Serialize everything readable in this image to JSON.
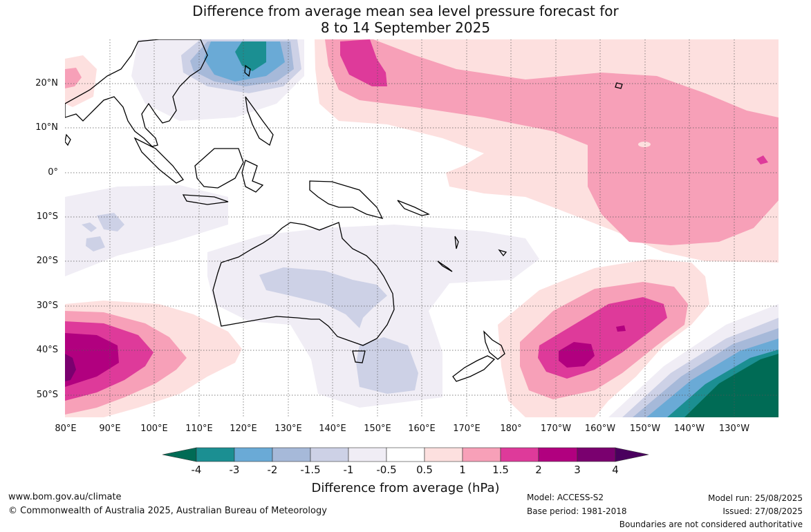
{
  "title": {
    "line1": "Difference from average mean sea level pressure forecast for",
    "line2": "8 to 14 September 2025"
  },
  "map": {
    "lat_labels": [
      "20°N",
      "10°N",
      "0°",
      "10°S",
      "20°S",
      "30°S",
      "40°S",
      "50°S"
    ],
    "lon_labels": [
      "80°E",
      "90°E",
      "100°E",
      "110°E",
      "120°E",
      "130°E",
      "140°E",
      "150°E",
      "160°E",
      "170°E",
      "180°",
      "170°W",
      "160°W",
      "150°W",
      "140°W",
      "130°W"
    ]
  },
  "colorbar": {
    "title": "Difference from average (hPa)",
    "tick_labels": [
      "-4",
      "-3",
      "-2",
      "-1.5",
      "-1",
      "-0.5",
      "0.5",
      "1",
      "1.5",
      "2",
      "3",
      "4"
    ],
    "colors": [
      "#006b55",
      "#1b8f92",
      "#6aaad6",
      "#a6b9d9",
      "#cdd1e6",
      "#f0edf5",
      "#ffffff",
      "#fde0df",
      "#f7a0b8",
      "#de3a9a",
      "#b1007f",
      "#7a006f",
      "#4a005e"
    ]
  },
  "footer": {
    "website": "www.bom.gov.au/climate",
    "copyright": "© Commonwealth of Australia 2025, Australian Bureau of Meteorology",
    "model": "Model: ACCESS-S2",
    "base_period": "Base period: 1981-2018",
    "model_run": "Model run: 25/08/2025",
    "issued": "Issued: 27/08/2025",
    "disclaimer": "Boundaries are not considered authoritative"
  }
}
